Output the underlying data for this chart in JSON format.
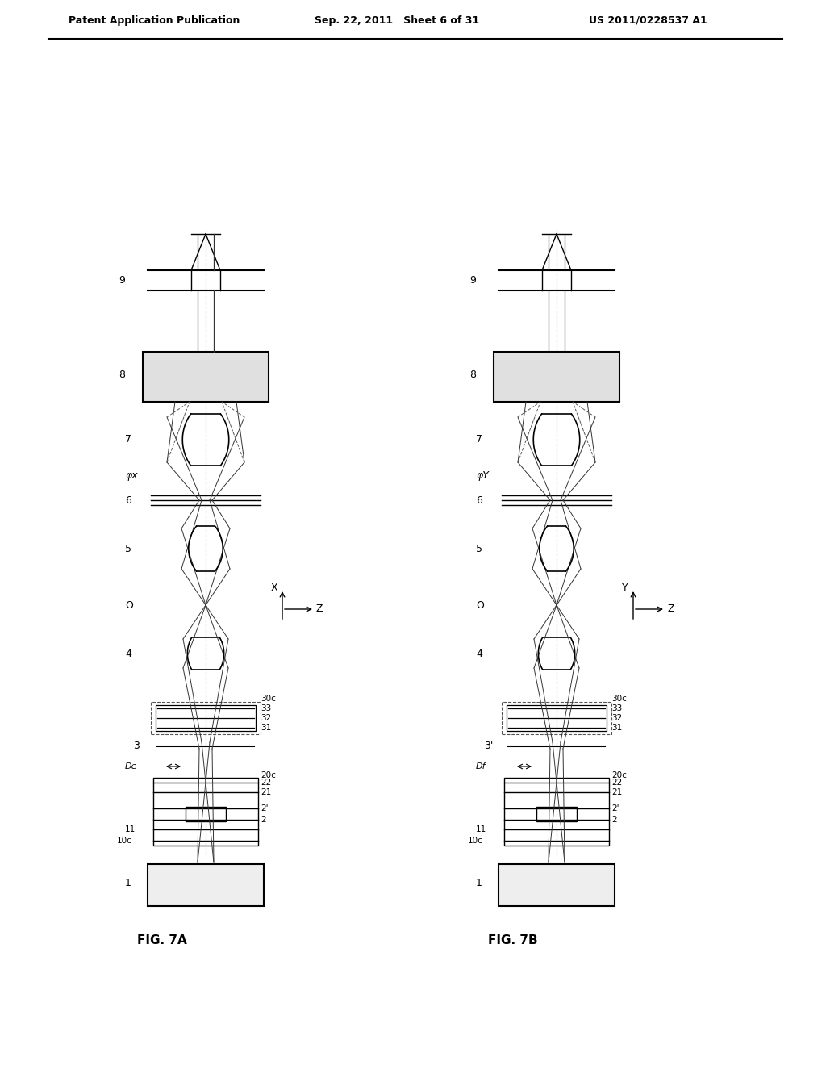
{
  "title_left": "Patent Application Publication",
  "title_mid": "Sep. 22, 2011   Sheet 6 of 31",
  "title_right": "US 2011/0228537 A1",
  "fig7a_label": "FIG. 7A",
  "fig7b_label": "FIG. 7B",
  "bg_color": "#ffffff",
  "line_color": "#000000",
  "line_color_gray": "#555555",
  "dashed_color": "#888888"
}
